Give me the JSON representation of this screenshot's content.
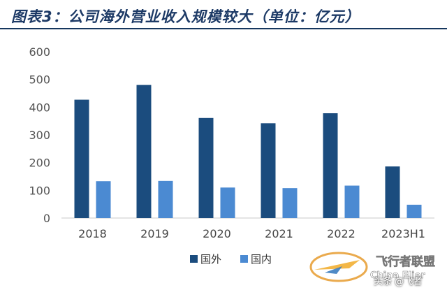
{
  "header": {
    "title": "图表3：公司海外营业收入规模较大（单位：亿元）"
  },
  "chart_data": {
    "type": "bar",
    "categories": [
      "2018",
      "2019",
      "2020",
      "2021",
      "2022",
      "2023H1"
    ],
    "series": [
      {
        "name": "国外",
        "color": "#1b4c7e",
        "values": [
          427,
          480,
          361,
          342,
          378,
          186
        ]
      },
      {
        "name": "国内",
        "color": "#4b8ad2",
        "values": [
          133,
          134,
          110,
          108,
          117,
          48
        ]
      }
    ],
    "yticks": [
      0,
      100,
      200,
      300,
      400,
      500,
      600
    ],
    "ylim": [
      0,
      600
    ],
    "grid": false,
    "legend": "bottom-center"
  },
  "watermark": {
    "logo_text": "飞行者联盟",
    "logo_subtext": "China Flier",
    "credit": "头条 @飞者"
  }
}
